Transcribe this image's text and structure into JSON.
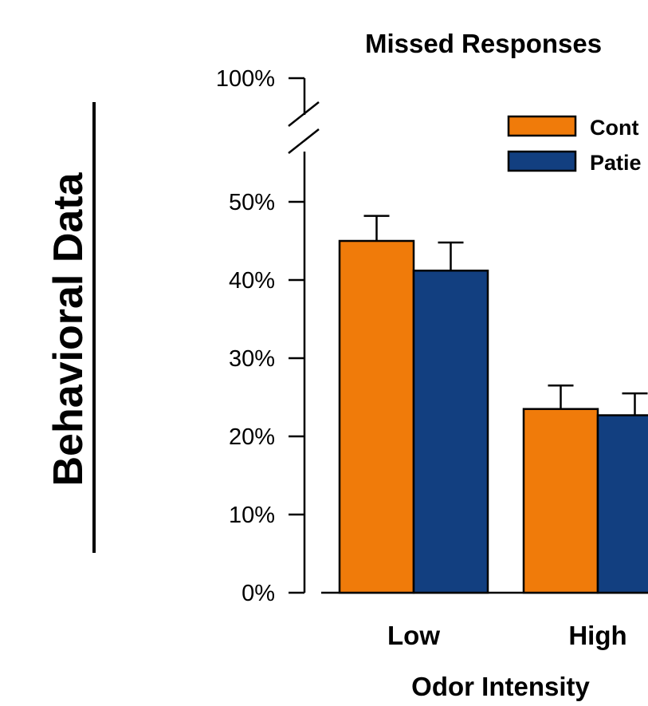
{
  "side_title": "Behavioral Data",
  "chart_data": {
    "type": "bar",
    "title": "Missed Responses",
    "xlabel": "Odor Intensity",
    "ylabel": "",
    "categories": [
      "Low",
      "High"
    ],
    "series": [
      {
        "name": "Cont",
        "color": "#f07b0a",
        "values": [
          45,
          23.5
        ],
        "errors": [
          3.2,
          3
        ]
      },
      {
        "name": "Patie",
        "color": "#123f80",
        "values": [
          41.2,
          22.7
        ],
        "errors": [
          3.6,
          2.8
        ]
      }
    ],
    "yticks": [
      {
        "value": 0,
        "label": "0%"
      },
      {
        "value": 10,
        "label": "10%"
      },
      {
        "value": 20,
        "label": "20%"
      },
      {
        "value": 30,
        "label": "30%"
      },
      {
        "value": 40,
        "label": "40%"
      },
      {
        "value": 50,
        "label": "50%"
      },
      {
        "value": 100,
        "label": "100%"
      }
    ],
    "ylim": [
      0,
      100
    ],
    "axis_break": true,
    "legend_position": "top-right",
    "grid": false
  }
}
